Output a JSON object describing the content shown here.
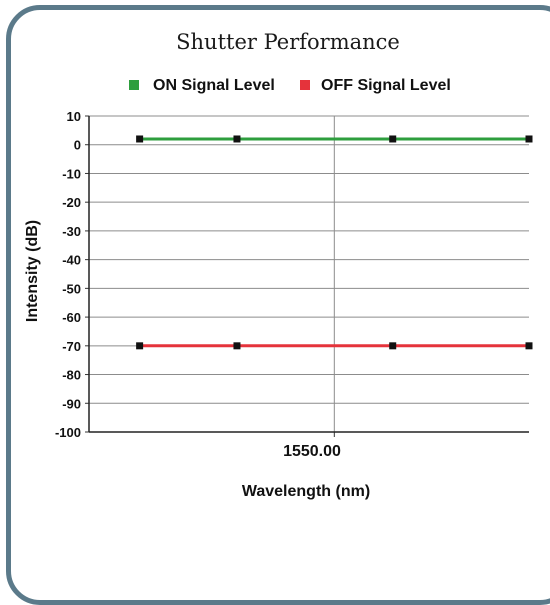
{
  "chart_data": {
    "type": "line",
    "title": "Shutter Performance",
    "xlabel": "Wavelength (nm)",
    "ylabel": "Intensity (dB)",
    "ylim": [
      -100,
      10
    ],
    "yticks": [
      "10",
      "0",
      "-10",
      "-20",
      "-30",
      "-40",
      "-50",
      "-60",
      "-70",
      "-80",
      "-90",
      "-100"
    ],
    "xticks": [
      "1550.00"
    ],
    "legend_position": "top",
    "grid": true,
    "series": [
      {
        "name": "ON Signal Level",
        "color": "#2e9e3e",
        "points": [
          {
            "x": 1549.9,
            "y": 2
          },
          {
            "x": 1549.95,
            "y": 2
          },
          {
            "x": 1550.03,
            "y": 2
          },
          {
            "x": 1550.1,
            "y": 2
          }
        ]
      },
      {
        "name": "OFF Signal Level",
        "color": "#e5333b",
        "points": [
          {
            "x": 1549.9,
            "y": -70
          },
          {
            "x": 1549.95,
            "y": -70
          },
          {
            "x": 1550.03,
            "y": -70
          },
          {
            "x": 1550.1,
            "y": -70
          }
        ]
      }
    ]
  }
}
